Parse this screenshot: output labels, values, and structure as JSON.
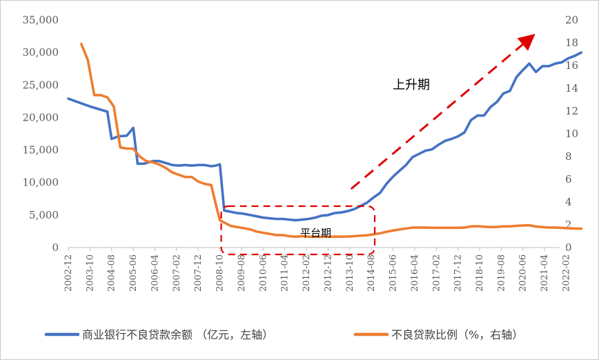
{
  "chart_data": {
    "type": "line",
    "x_labels": [
      "2002-12",
      "2003-10",
      "2004-08",
      "2005-06",
      "2006-04",
      "2007-02",
      "2007-12",
      "2008-10",
      "2009-08",
      "2010-06",
      "2011-04",
      "2012-02",
      "2012-12",
      "2013-10",
      "2014-08",
      "2015-06",
      "2016-04",
      "2017-02",
      "2017-12",
      "2018-10",
      "2019-08",
      "2020-06",
      "2021-04",
      "2022-02"
    ],
    "y_left": {
      "ticks": [
        "0",
        "5,000",
        "10,000",
        "15,000",
        "20,000",
        "25,000",
        "30,000",
        "35,000"
      ],
      "min": 0,
      "max": 35000
    },
    "y_right": {
      "ticks": [
        "0",
        "2",
        "4",
        "6",
        "8",
        "10",
        "12",
        "14",
        "16",
        "18",
        "20"
      ],
      "min": 0,
      "max": 20
    },
    "series": [
      {
        "name": "商业银行不良贷款余额 （亿元，左轴）",
        "axis": "left",
        "color": "#4472C4",
        "points": [
          [
            "2002-12",
            22900
          ],
          [
            "2003-10",
            21700
          ],
          [
            "2004-05",
            21000
          ],
          [
            "2004-06",
            20900
          ],
          [
            "2004-08",
            16700
          ],
          [
            "2004-11",
            17100
          ],
          [
            "2005-03",
            17200
          ],
          [
            "2005-06",
            18400
          ],
          [
            "2005-08",
            12900
          ],
          [
            "2005-11",
            12900
          ],
          [
            "2006-03",
            13300
          ],
          [
            "2006-06",
            13300
          ],
          [
            "2006-09",
            13000
          ],
          [
            "2006-12",
            12700
          ],
          [
            "2007-03",
            12600
          ],
          [
            "2007-06",
            12700
          ],
          [
            "2007-09",
            12600
          ],
          [
            "2007-12",
            12700
          ],
          [
            "2008-03",
            12700
          ],
          [
            "2008-06",
            12500
          ],
          [
            "2008-08",
            12600
          ],
          [
            "2008-10",
            12800
          ],
          [
            "2008-12",
            5700
          ],
          [
            "2009-03",
            5500
          ],
          [
            "2009-06",
            5300
          ],
          [
            "2009-09",
            5200
          ],
          [
            "2009-12",
            5000
          ],
          [
            "2010-03",
            4800
          ],
          [
            "2010-06",
            4600
          ],
          [
            "2010-09",
            4500
          ],
          [
            "2010-12",
            4400
          ],
          [
            "2011-03",
            4400
          ],
          [
            "2011-06",
            4300
          ],
          [
            "2011-09",
            4200
          ],
          [
            "2011-12",
            4300
          ],
          [
            "2012-03",
            4400
          ],
          [
            "2012-06",
            4600
          ],
          [
            "2012-09",
            4900
          ],
          [
            "2012-12",
            5000
          ],
          [
            "2013-03",
            5300
          ],
          [
            "2013-06",
            5400
          ],
          [
            "2013-09",
            5600
          ],
          [
            "2013-12",
            5900
          ],
          [
            "2014-03",
            6400
          ],
          [
            "2014-06",
            6900
          ],
          [
            "2014-09",
            7700
          ],
          [
            "2014-12",
            8400
          ],
          [
            "2015-03",
            9800
          ],
          [
            "2015-06",
            10900
          ],
          [
            "2015-09",
            11800
          ],
          [
            "2015-12",
            12700
          ],
          [
            "2016-03",
            13900
          ],
          [
            "2016-06",
            14400
          ],
          [
            "2016-09",
            14900
          ],
          [
            "2016-12",
            15100
          ],
          [
            "2017-03",
            15800
          ],
          [
            "2017-06",
            16400
          ],
          [
            "2017-09",
            16700
          ],
          [
            "2017-12",
            17100
          ],
          [
            "2018-03",
            17700
          ],
          [
            "2018-06",
            19600
          ],
          [
            "2018-09",
            20300
          ],
          [
            "2018-12",
            20300
          ],
          [
            "2019-03",
            21600
          ],
          [
            "2019-06",
            22400
          ],
          [
            "2019-09",
            23700
          ],
          [
            "2019-12",
            24100
          ],
          [
            "2020-03",
            26200
          ],
          [
            "2020-06",
            27300
          ],
          [
            "2020-09",
            28300
          ],
          [
            "2020-12",
            27000
          ],
          [
            "2021-03",
            27900
          ],
          [
            "2021-06",
            27900
          ],
          [
            "2021-09",
            28300
          ],
          [
            "2021-12",
            28500
          ],
          [
            "2022-03",
            29100
          ],
          [
            "2022-06",
            29500
          ],
          [
            "2022-09",
            30000
          ]
        ]
      },
      {
        "name": "不良贷款比例（%，右轴）",
        "axis": "right",
        "color": "#ED7D31",
        "points": [
          [
            "2003-06",
            17.9
          ],
          [
            "2003-09",
            16.5
          ],
          [
            "2003-12",
            13.4
          ],
          [
            "2004-03",
            13.4
          ],
          [
            "2004-06",
            13.2
          ],
          [
            "2004-09",
            12.4
          ],
          [
            "2004-12",
            8.8
          ],
          [
            "2005-03",
            8.7
          ],
          [
            "2005-06",
            8.7
          ],
          [
            "2005-09",
            8.0
          ],
          [
            "2005-12",
            7.6
          ],
          [
            "2006-03",
            7.5
          ],
          [
            "2006-06",
            7.3
          ],
          [
            "2006-09",
            7.0
          ],
          [
            "2006-12",
            6.6
          ],
          [
            "2007-03",
            6.4
          ],
          [
            "2007-06",
            6.2
          ],
          [
            "2007-09",
            6.2
          ],
          [
            "2007-12",
            5.8
          ],
          [
            "2008-03",
            5.6
          ],
          [
            "2008-06",
            5.5
          ],
          [
            "2008-08",
            3.9
          ],
          [
            "2008-10",
            2.4
          ],
          [
            "2008-12",
            2.2
          ],
          [
            "2009-03",
            1.9
          ],
          [
            "2009-06",
            1.8
          ],
          [
            "2009-09",
            1.7
          ],
          [
            "2009-12",
            1.6
          ],
          [
            "2010-03",
            1.4
          ],
          [
            "2010-06",
            1.3
          ],
          [
            "2010-09",
            1.2
          ],
          [
            "2010-12",
            1.1
          ],
          [
            "2011-03",
            1.1
          ],
          [
            "2011-06",
            1.0
          ],
          [
            "2011-09",
            0.95
          ],
          [
            "2011-12",
            1.0
          ],
          [
            "2012-03",
            0.95
          ],
          [
            "2012-06",
            0.95
          ],
          [
            "2012-09",
            0.95
          ],
          [
            "2012-12",
            0.95
          ],
          [
            "2013-03",
            0.96
          ],
          [
            "2013-06",
            0.96
          ],
          [
            "2013-09",
            0.97
          ],
          [
            "2013-12",
            1.0
          ],
          [
            "2014-03",
            1.04
          ],
          [
            "2014-06",
            1.08
          ],
          [
            "2014-09",
            1.16
          ],
          [
            "2014-12",
            1.25
          ],
          [
            "2015-03",
            1.39
          ],
          [
            "2015-06",
            1.5
          ],
          [
            "2015-09",
            1.59
          ],
          [
            "2015-12",
            1.67
          ],
          [
            "2016-03",
            1.75
          ],
          [
            "2016-06",
            1.75
          ],
          [
            "2016-09",
            1.76
          ],
          [
            "2016-12",
            1.74
          ],
          [
            "2017-03",
            1.74
          ],
          [
            "2017-06",
            1.74
          ],
          [
            "2017-09",
            1.74
          ],
          [
            "2017-12",
            1.74
          ],
          [
            "2018-03",
            1.75
          ],
          [
            "2018-06",
            1.86
          ],
          [
            "2018-09",
            1.87
          ],
          [
            "2018-12",
            1.83
          ],
          [
            "2019-03",
            1.8
          ],
          [
            "2019-06",
            1.81
          ],
          [
            "2019-09",
            1.86
          ],
          [
            "2019-12",
            1.86
          ],
          [
            "2020-03",
            1.91
          ],
          [
            "2020-06",
            1.94
          ],
          [
            "2020-09",
            1.96
          ],
          [
            "2020-12",
            1.84
          ],
          [
            "2021-03",
            1.8
          ],
          [
            "2021-06",
            1.76
          ],
          [
            "2021-09",
            1.75
          ],
          [
            "2021-12",
            1.73
          ],
          [
            "2022-03",
            1.69
          ],
          [
            "2022-06",
            1.67
          ],
          [
            "2022-09",
            1.66
          ]
        ]
      }
    ],
    "annotations": [
      {
        "text": "上升期"
      },
      {
        "text": "平台期"
      }
    ],
    "legend_position": "bottom"
  }
}
